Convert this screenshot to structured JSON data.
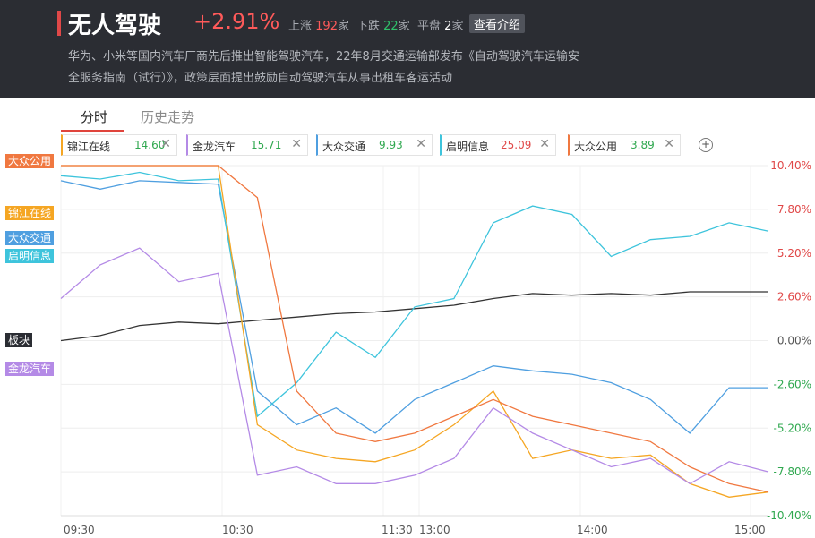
{
  "header": {
    "title": "无人驾驶",
    "change": "+2.91%",
    "up_label": "上涨",
    "up_count": "192",
    "up_unit": "家",
    "down_label": "下跌",
    "down_count": "22",
    "down_unit": "家",
    "flat_label": "平盘",
    "flat_count": "2",
    "flat_unit": "家",
    "intro_button": "查看介绍",
    "desc_line1": "华为、小米等国内汽车厂商先后推出智能驾驶汽车，22年8月交通运输部发布《自动驾驶汽车运输安",
    "desc_line2": "全服务指南（试行）》，政策层面提出鼓励自动驾驶汽车从事出租车客运活动"
  },
  "tabs": {
    "intraday": "分时",
    "history": "历史走势"
  },
  "legend": [
    {
      "name": "锦江在线",
      "value": "14.60",
      "color": "#f5a623",
      "value_color": "#2fa84f"
    },
    {
      "name": "金龙汽车",
      "value": "15.71",
      "color": "#b48ae6",
      "value_color": "#2fa84f"
    },
    {
      "name": "大众交通",
      "value": "9.93",
      "color": "#4f9fe0",
      "value_color": "#2fa84f"
    },
    {
      "name": "启明信息",
      "value": "25.09",
      "color": "#3ec4dc",
      "value_color": "#e04848"
    },
    {
      "name": "大众公用",
      "value": "3.89",
      "color": "#f07840",
      "value_color": "#2fa84f"
    }
  ],
  "tags": {
    "dazhong_gongyong": "大众公用",
    "jinjiang": "锦江在线",
    "dazhong_jiaotong": "大众交通",
    "qiming": "启明信息",
    "bankuai": "板块",
    "jinlong": "金龙汽车"
  },
  "chart_data": {
    "type": "line",
    "x_ticks": [
      "09:30",
      "10:30",
      "11:30",
      "13:00",
      "14:00",
      "15:00"
    ],
    "y_ticks": [
      "10.40%",
      "7.80%",
      "5.20%",
      "2.60%",
      "0.00%",
      "-2.60%",
      "-5.20%",
      "-7.80%",
      "-10.40%"
    ],
    "ylim": [
      -10.4,
      10.4
    ],
    "series": [
      {
        "name": "板块",
        "color": "#333333",
        "values": [
          0.0,
          0.3,
          0.9,
          1.1,
          1.0,
          1.2,
          1.4,
          1.6,
          1.7,
          1.9,
          2.1,
          2.5,
          2.8,
          2.7,
          2.8,
          2.7,
          2.9,
          2.9,
          2.9
        ]
      },
      {
        "name": "大众交通",
        "color": "#4f9fe0",
        "values": [
          9.5,
          9.0,
          9.5,
          9.4,
          9.3,
          -3.0,
          -5.0,
          -4.0,
          -5.5,
          -3.5,
          -2.5,
          -1.5,
          -1.8,
          -2.0,
          -2.5,
          -3.5,
          -5.5,
          -2.8,
          -2.8
        ]
      },
      {
        "name": "启明信息",
        "color": "#3ec4dc",
        "values": [
          9.8,
          9.6,
          10.0,
          9.5,
          9.6,
          -4.5,
          -2.5,
          0.5,
          -1.0,
          2.0,
          2.5,
          7.0,
          8.0,
          7.5,
          5.0,
          6.0,
          6.2,
          7.0,
          6.5
        ]
      },
      {
        "name": "锦江在线",
        "color": "#f5a623",
        "values": [
          10.4,
          10.4,
          10.4,
          10.4,
          10.4,
          -5.0,
          -6.5,
          -7.0,
          -7.2,
          -6.5,
          -5.0,
          -3.0,
          -7.0,
          -6.5,
          -7.0,
          -6.8,
          -8.5,
          -9.3,
          -9.0
        ]
      },
      {
        "name": "金龙汽车",
        "color": "#b48ae6",
        "values": [
          2.5,
          4.5,
          5.5,
          3.5,
          4.0,
          -8.0,
          -7.5,
          -8.5,
          -8.5,
          -8.0,
          -7.0,
          -4.0,
          -5.5,
          -6.5,
          -7.5,
          -7.0,
          -8.5,
          -7.2,
          -7.8
        ]
      },
      {
        "name": "大众公用",
        "color": "#f07840",
        "values": [
          10.4,
          10.4,
          10.4,
          10.4,
          10.4,
          8.5,
          -3.0,
          -5.5,
          -6.0,
          -5.5,
          -4.5,
          -3.5,
          -4.5,
          -5.0,
          -5.5,
          -6.0,
          -7.5,
          -8.5,
          -9.0
        ]
      }
    ]
  }
}
